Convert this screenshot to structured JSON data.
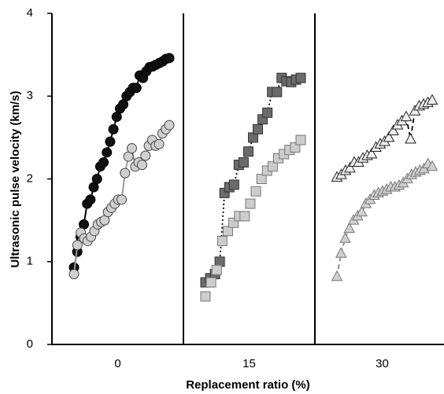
{
  "chart_data": {
    "type": "panel-scatter",
    "y_label": "Ultrasonic pulse velocity (km/s)",
    "x_label": "Replacement ratio (%)",
    "ylim": [
      0,
      4
    ],
    "yticks": [
      0,
      1,
      2,
      3,
      4
    ],
    "categories": [
      "0",
      "15",
      "30"
    ],
    "groups": [
      {
        "series": [
          {
            "marker": "circle",
            "color": "#111111",
            "stroke": "#000000",
            "line": "solid",
            "line_color": "#000000",
            "values": [
              0.93,
              1.12,
              1.3,
              1.45,
              1.7,
              1.75,
              1.9,
              2.0,
              2.15,
              2.2,
              2.32,
              2.45,
              2.6,
              2.75,
              2.85,
              2.9,
              3.0,
              3.05,
              3.1,
              3.1,
              3.25,
              3.22,
              3.3,
              3.35,
              3.36,
              3.38,
              3.4,
              3.42,
              3.45,
              3.46
            ]
          },
          {
            "marker": "circle",
            "color": "#d0d0d0",
            "stroke": "#444444",
            "line": "solid",
            "line_color": "#999999",
            "values": [
              0.85,
              1.2,
              1.35,
              1.28,
              1.25,
              1.3,
              1.37,
              1.45,
              1.48,
              1.5,
              1.6,
              1.65,
              1.7,
              1.75,
              1.75,
              2.07,
              2.27,
              2.37,
              2.15,
              2.2,
              2.17,
              2.28,
              2.4,
              2.47,
              2.4,
              2.42,
              2.55,
              2.6,
              2.65
            ]
          }
        ]
      },
      {
        "series": [
          {
            "marker": "square",
            "color": "#6b6b6b",
            "stroke": "#333333",
            "line": "dotted",
            "line_color": "#000000",
            "values": [
              0.75,
              0.8,
              0.85,
              1.0,
              1.83,
              1.9,
              1.93,
              2.17,
              2.2,
              2.33,
              2.5,
              2.6,
              2.72,
              2.8,
              3.05,
              3.05,
              3.22,
              3.18,
              3.17,
              3.2,
              3.22
            ]
          },
          {
            "marker": "square",
            "color": "#cccccc",
            "stroke": "#777777",
            "line": null,
            "line_color": null,
            "values": [
              0.58,
              0.75,
              0.9,
              1.25,
              1.37,
              1.47,
              1.55,
              1.55,
              1.7,
              1.85,
              2.0,
              2.1,
              2.15,
              2.25,
              2.3,
              2.35,
              2.38,
              2.47
            ]
          }
        ]
      },
      {
        "series": [
          {
            "marker": "triangle",
            "color": "#eeeeee",
            "stroke": "#222222",
            "line": "dashed",
            "line_color": "#000000",
            "values": [
              2.02,
              2.05,
              2.1,
              2.13,
              2.2,
              2.2,
              2.25,
              2.28,
              2.3,
              2.38,
              2.42,
              2.45,
              2.5,
              2.58,
              2.65,
              2.7,
              2.75,
              2.48,
              2.82,
              2.88,
              2.9,
              2.92,
              2.95
            ]
          },
          {
            "marker": "triangle",
            "color": "#cfcfcf",
            "stroke": "#777777",
            "line": "dashed",
            "line_color": "#888888",
            "values": [
              0.82,
              1.1,
              1.28,
              1.4,
              1.5,
              1.55,
              1.6,
              1.7,
              1.75,
              1.8,
              1.83,
              1.85,
              1.87,
              1.9,
              1.9,
              1.92,
              1.95,
              2.0,
              2.05,
              2.08,
              2.1,
              2.12,
              2.18,
              2.15
            ]
          }
        ]
      }
    ]
  }
}
